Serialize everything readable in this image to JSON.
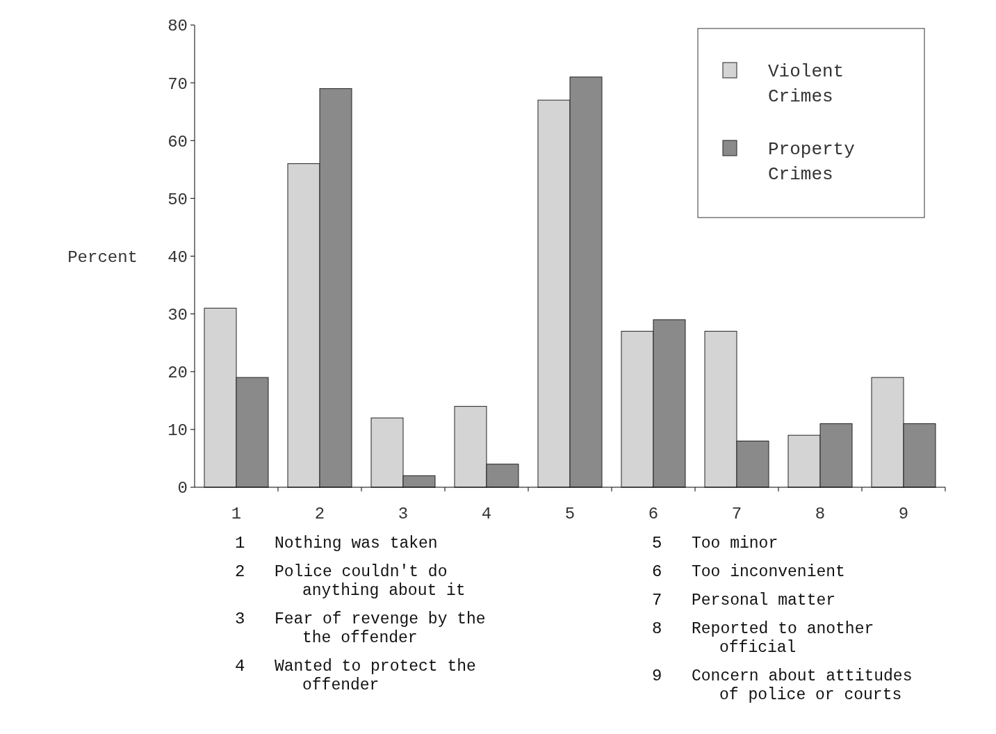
{
  "chart_data": {
    "type": "bar",
    "ylabel": "Percent",
    "categories": [
      "1",
      "2",
      "3",
      "4",
      "5",
      "6",
      "7",
      "8",
      "9"
    ],
    "series": [
      {
        "name": "Violent Crimes",
        "color": "#d4d4d4",
        "values": [
          31,
          56,
          12,
          14,
          67,
          27,
          27,
          9,
          19
        ]
      },
      {
        "name": "Property Crimes",
        "color": "#8a8a8a",
        "values": [
          19,
          69,
          2,
          4,
          71,
          29,
          8,
          11,
          11
        ]
      }
    ],
    "ylim": [
      0,
      80
    ],
    "yticks": [
      0,
      10,
      20,
      30,
      40,
      50,
      60,
      70,
      80
    ],
    "grid": false,
    "legend": "top right",
    "annotations": [
      "1 Nothing was taken",
      "2 Police couldn't do anything about it",
      "3 Fear of revenge by the the offender",
      "4 Wanted to protect the offender",
      "5 Too minor",
      "6 Too inconvenient",
      "7 Personal matter",
      "8 Reported to another official",
      "9 Concern about attitudes of police or courts"
    ]
  }
}
